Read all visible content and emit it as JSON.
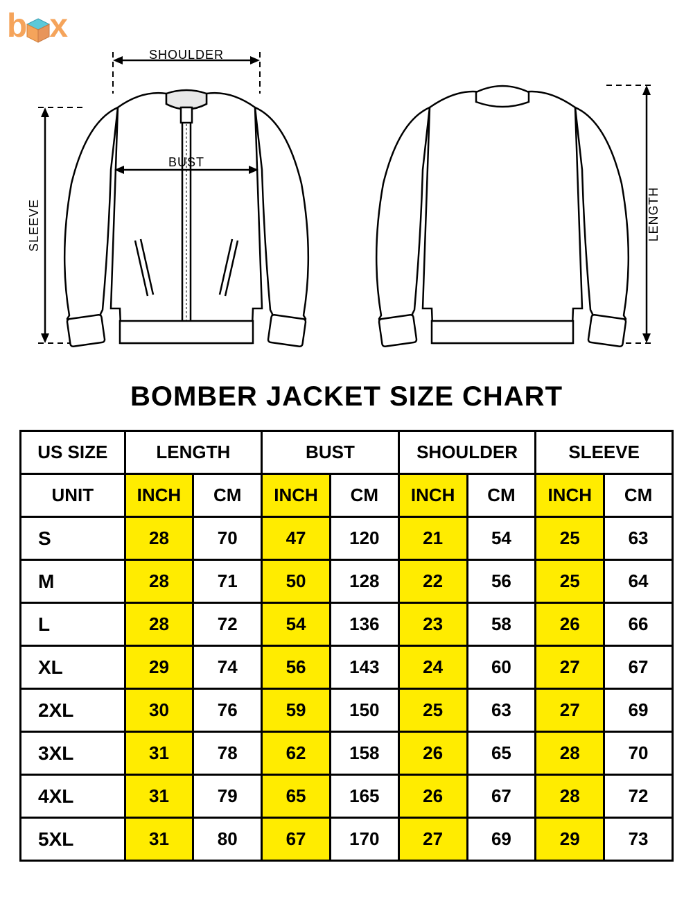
{
  "logo": {
    "text": "box"
  },
  "diagram": {
    "labels": {
      "shoulder": "SHOULDER",
      "bust": "BUST",
      "sleeve": "SLEEVE",
      "length": "LENGTH"
    },
    "stroke_color": "#000000",
    "dash": "8,6"
  },
  "title": "BOMBER JACKET SIZE CHART",
  "table": {
    "header_size": "US SIZE",
    "unit_label": "UNIT",
    "measurements": [
      "LENGTH",
      "BUST",
      "SHOULDER",
      "SLEEVE"
    ],
    "unit_cols": [
      "INCH",
      "CM"
    ],
    "sizes": [
      "S",
      "M",
      "L",
      "XL",
      "2XL",
      "3XL",
      "4XL",
      "5XL"
    ],
    "rows": [
      {
        "size": "S",
        "length_in": 28,
        "length_cm": 70,
        "bust_in": 47,
        "bust_cm": 120,
        "shoulder_in": 21,
        "shoulder_cm": 54,
        "sleeve_in": 25,
        "sleeve_cm": 63
      },
      {
        "size": "M",
        "length_in": 28,
        "length_cm": 71,
        "bust_in": 50,
        "bust_cm": 128,
        "shoulder_in": 22,
        "shoulder_cm": 56,
        "sleeve_in": 25,
        "sleeve_cm": 64
      },
      {
        "size": "L",
        "length_in": 28,
        "length_cm": 72,
        "bust_in": 54,
        "bust_cm": 136,
        "shoulder_in": 23,
        "shoulder_cm": 58,
        "sleeve_in": 26,
        "sleeve_cm": 66
      },
      {
        "size": "XL",
        "length_in": 29,
        "length_cm": 74,
        "bust_in": 56,
        "bust_cm": 143,
        "shoulder_in": 24,
        "shoulder_cm": 60,
        "sleeve_in": 27,
        "sleeve_cm": 67
      },
      {
        "size": "2XL",
        "length_in": 30,
        "length_cm": 76,
        "bust_in": 59,
        "bust_cm": 150,
        "shoulder_in": 25,
        "shoulder_cm": 63,
        "sleeve_in": 27,
        "sleeve_cm": 69
      },
      {
        "size": "3XL",
        "length_in": 31,
        "length_cm": 78,
        "bust_in": 62,
        "bust_cm": 158,
        "shoulder_in": 26,
        "shoulder_cm": 65,
        "sleeve_in": 28,
        "sleeve_cm": 70
      },
      {
        "size": "4XL",
        "length_in": 31,
        "length_cm": 79,
        "bust_in": 65,
        "bust_cm": 165,
        "shoulder_in": 26,
        "shoulder_cm": 67,
        "sleeve_in": 28,
        "sleeve_cm": 72
      },
      {
        "size": "5XL",
        "length_in": 31,
        "length_cm": 80,
        "bust_in": 67,
        "bust_cm": 170,
        "shoulder_in": 27,
        "shoulder_cm": 69,
        "sleeve_in": 29,
        "sleeve_cm": 73
      }
    ],
    "highlight_color": "#ffec00",
    "border_color": "#000000",
    "border_width": 3,
    "font_size": 26,
    "font_weight": "bold"
  }
}
